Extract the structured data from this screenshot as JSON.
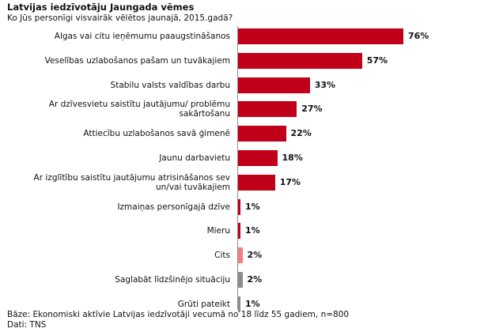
{
  "chart_data": {
    "type": "bar",
    "orientation": "horizontal",
    "title": "Latvijas iedzīvotāju Jaungada vēmes",
    "subtitle": "Ko Jūs personīgi visvairāk vēlētos jaunajā, 2015.gadā?",
    "categories": [
      [
        "Algas vai citu ieņēmumu paaugstināšanos"
      ],
      [
        "Veselības uzlabošanos pašam un tuvākajiem"
      ],
      [
        "Stabilu valsts valdības darbu"
      ],
      [
        "Ar dzīvesvietu saistītu jautājumu/ problēmu",
        "sakārtošanu"
      ],
      [
        "Attiecību uzlabošanos savā ģimenē"
      ],
      [
        "Jaunu darbavietu"
      ],
      [
        "Ar izglītību  saistītu jautājumu atrisināšanos sev",
        "un/vai tuvākajiem"
      ],
      [
        "Izmaiņas personīgajā dzīve"
      ],
      [
        "Mieru"
      ],
      [
        "Cits"
      ],
      [
        "Saglabāt līdzšinējo situāciju"
      ],
      [
        "Grūti pateikt"
      ]
    ],
    "values": [
      76,
      57,
      33,
      27,
      22,
      18,
      17,
      1,
      1,
      2,
      2,
      1
    ],
    "value_labels": [
      "76%",
      "57%",
      "33%",
      "27%",
      "22%",
      "18%",
      "17%",
      "1%",
      "1%",
      "2%",
      "2%",
      "1%"
    ],
    "bar_colors": [
      "#c00018",
      "#c00018",
      "#c00018",
      "#c00018",
      "#c00018",
      "#c00018",
      "#c00018",
      "#c00018",
      "#c00018",
      "#f08080",
      "#8c8c8c",
      "#8c8c8c"
    ],
    "xlim": [
      0,
      100
    ],
    "grid": false,
    "legend": "none"
  },
  "footer": {
    "base": "Bāze: Ekonomiski aktīvie Latvijas iedzīvotāji vecumā no 18 līdz 55 gadiem, n=800",
    "source": "Dati: TNS"
  }
}
